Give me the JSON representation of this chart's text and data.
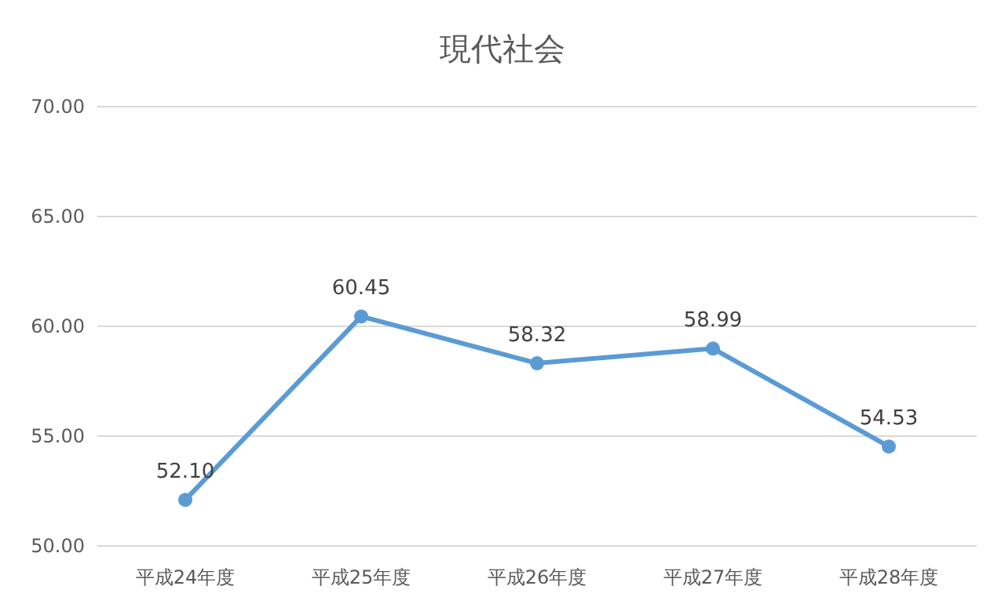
{
  "chart_data": {
    "type": "line",
    "title": "現代社会",
    "categories": [
      "平成24年度",
      "平成25年度",
      "平成26年度",
      "平成27年度",
      "平成28年度"
    ],
    "series": [
      {
        "color": "#5b9bd5",
        "values": [
          52.1,
          60.45,
          58.32,
          58.99,
          54.53
        ],
        "value_labels": [
          "52.10",
          "60.45",
          "58.32",
          "58.99",
          "54.53"
        ]
      }
    ],
    "ylim": [
      50,
      70
    ],
    "yticks": [
      {
        "value": 50,
        "label": "50.00"
      },
      {
        "value": 55,
        "label": "55.00"
      },
      {
        "value": 60,
        "label": "60.00"
      },
      {
        "value": 65,
        "label": "65.00"
      },
      {
        "value": 70,
        "label": "70.00"
      }
    ],
    "grid": "y",
    "marker": "circle",
    "line_style": "solid"
  }
}
